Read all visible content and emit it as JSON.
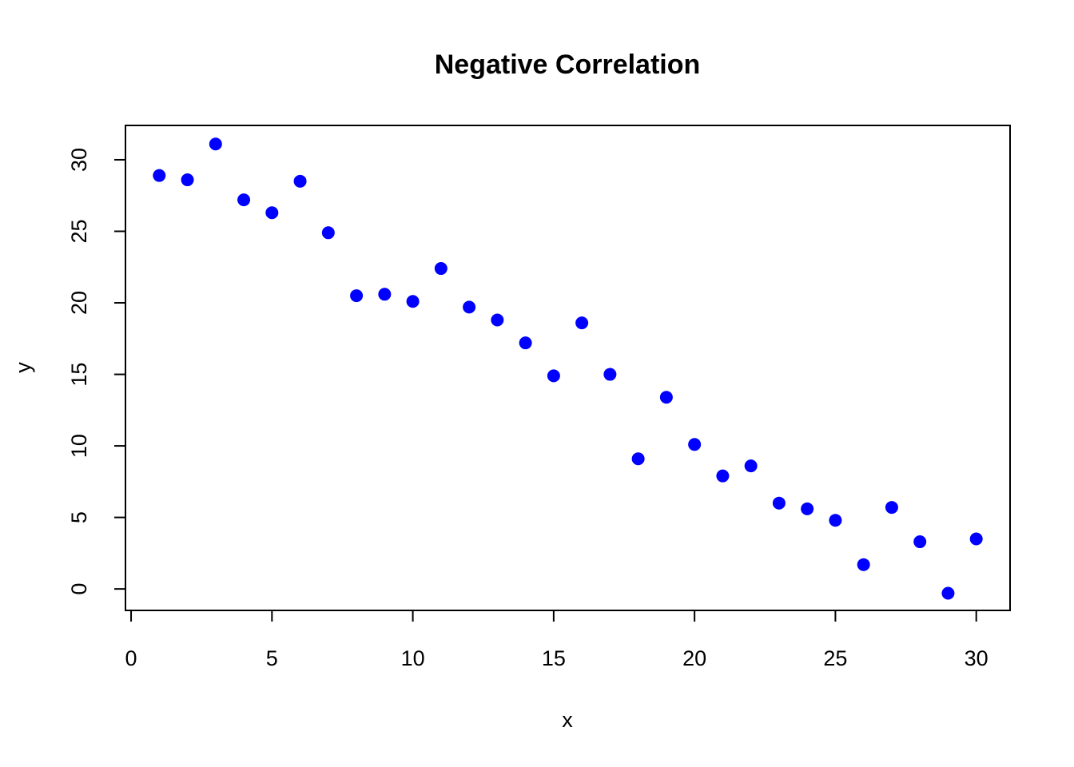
{
  "chart_data": {
    "type": "scatter",
    "title": "Negative Correlation",
    "xlabel": "x",
    "ylabel": "y",
    "xlim": [
      -0.2,
      31.2
    ],
    "ylim": [
      -1.5,
      32.4
    ],
    "xticks": [
      0,
      5,
      10,
      15,
      20,
      25,
      30
    ],
    "yticks": [
      0,
      5,
      10,
      15,
      20,
      25,
      30
    ],
    "point_color": "#0000ff",
    "grid": false,
    "legend": "none",
    "series": [
      {
        "x": [
          1,
          2,
          3,
          4,
          5,
          6,
          7,
          8,
          9,
          10,
          11,
          12,
          13,
          14,
          15,
          16,
          17,
          18,
          19,
          20,
          21,
          22,
          23,
          24,
          25,
          26,
          27,
          28,
          29,
          30
        ],
        "y": [
          28.9,
          28.6,
          31.1,
          27.2,
          26.3,
          28.5,
          24.9,
          20.5,
          20.6,
          20.1,
          22.4,
          19.7,
          18.8,
          17.2,
          14.9,
          18.6,
          15.0,
          9.1,
          13.4,
          10.1,
          7.9,
          8.6,
          6.0,
          5.6,
          4.8,
          1.7,
          5.7,
          3.3,
          -0.3,
          3.5
        ]
      }
    ]
  }
}
